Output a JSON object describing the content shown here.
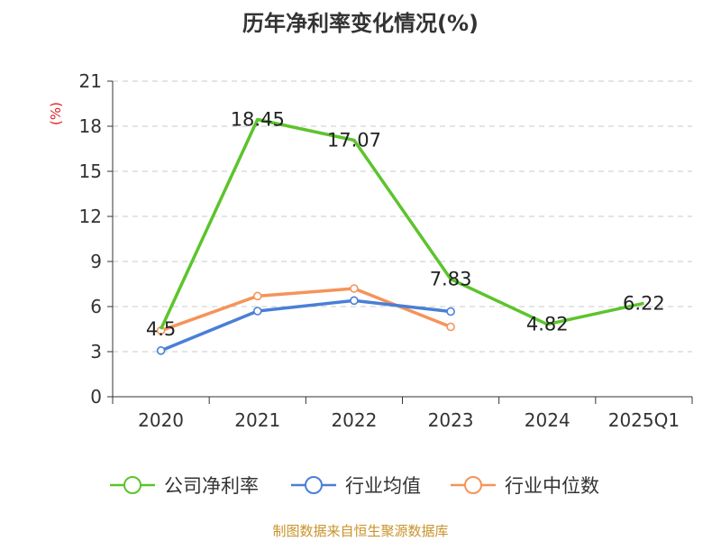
{
  "title": "历年净利率变化情况(%)",
  "source": "制图数据来自恒生聚源数据库",
  "chart_data": {
    "type": "line",
    "title": "历年净利率变化情况(%)",
    "ylabel": "(%)",
    "xlabel": "",
    "categories": [
      "2020",
      "2021",
      "2022",
      "2023",
      "2024",
      "2025Q1"
    ],
    "ylim": [
      0,
      21
    ],
    "yticks": [
      0,
      3,
      6,
      9,
      12,
      15,
      18,
      21
    ],
    "grid": "horizontal dashed",
    "legend_position": "bottom",
    "series": [
      {
        "name": "公司净利率",
        "color": "#5cc42c",
        "values": [
          4.5,
          18.45,
          17.07,
          7.83,
          4.82,
          6.22
        ],
        "labels": [
          "4.5",
          "18.45",
          "17.07",
          "7.83",
          "4.82",
          "6.22"
        ],
        "show_markers": false
      },
      {
        "name": "行业均值",
        "color": "#4a7fd6",
        "values": [
          3.07,
          5.7,
          6.4,
          5.67,
          null,
          null
        ],
        "show_markers": true
      },
      {
        "name": "行业中位数",
        "color": "#f5935a",
        "values": [
          4.4,
          6.7,
          7.2,
          4.65,
          null,
          null
        ],
        "show_markers": true
      }
    ]
  }
}
